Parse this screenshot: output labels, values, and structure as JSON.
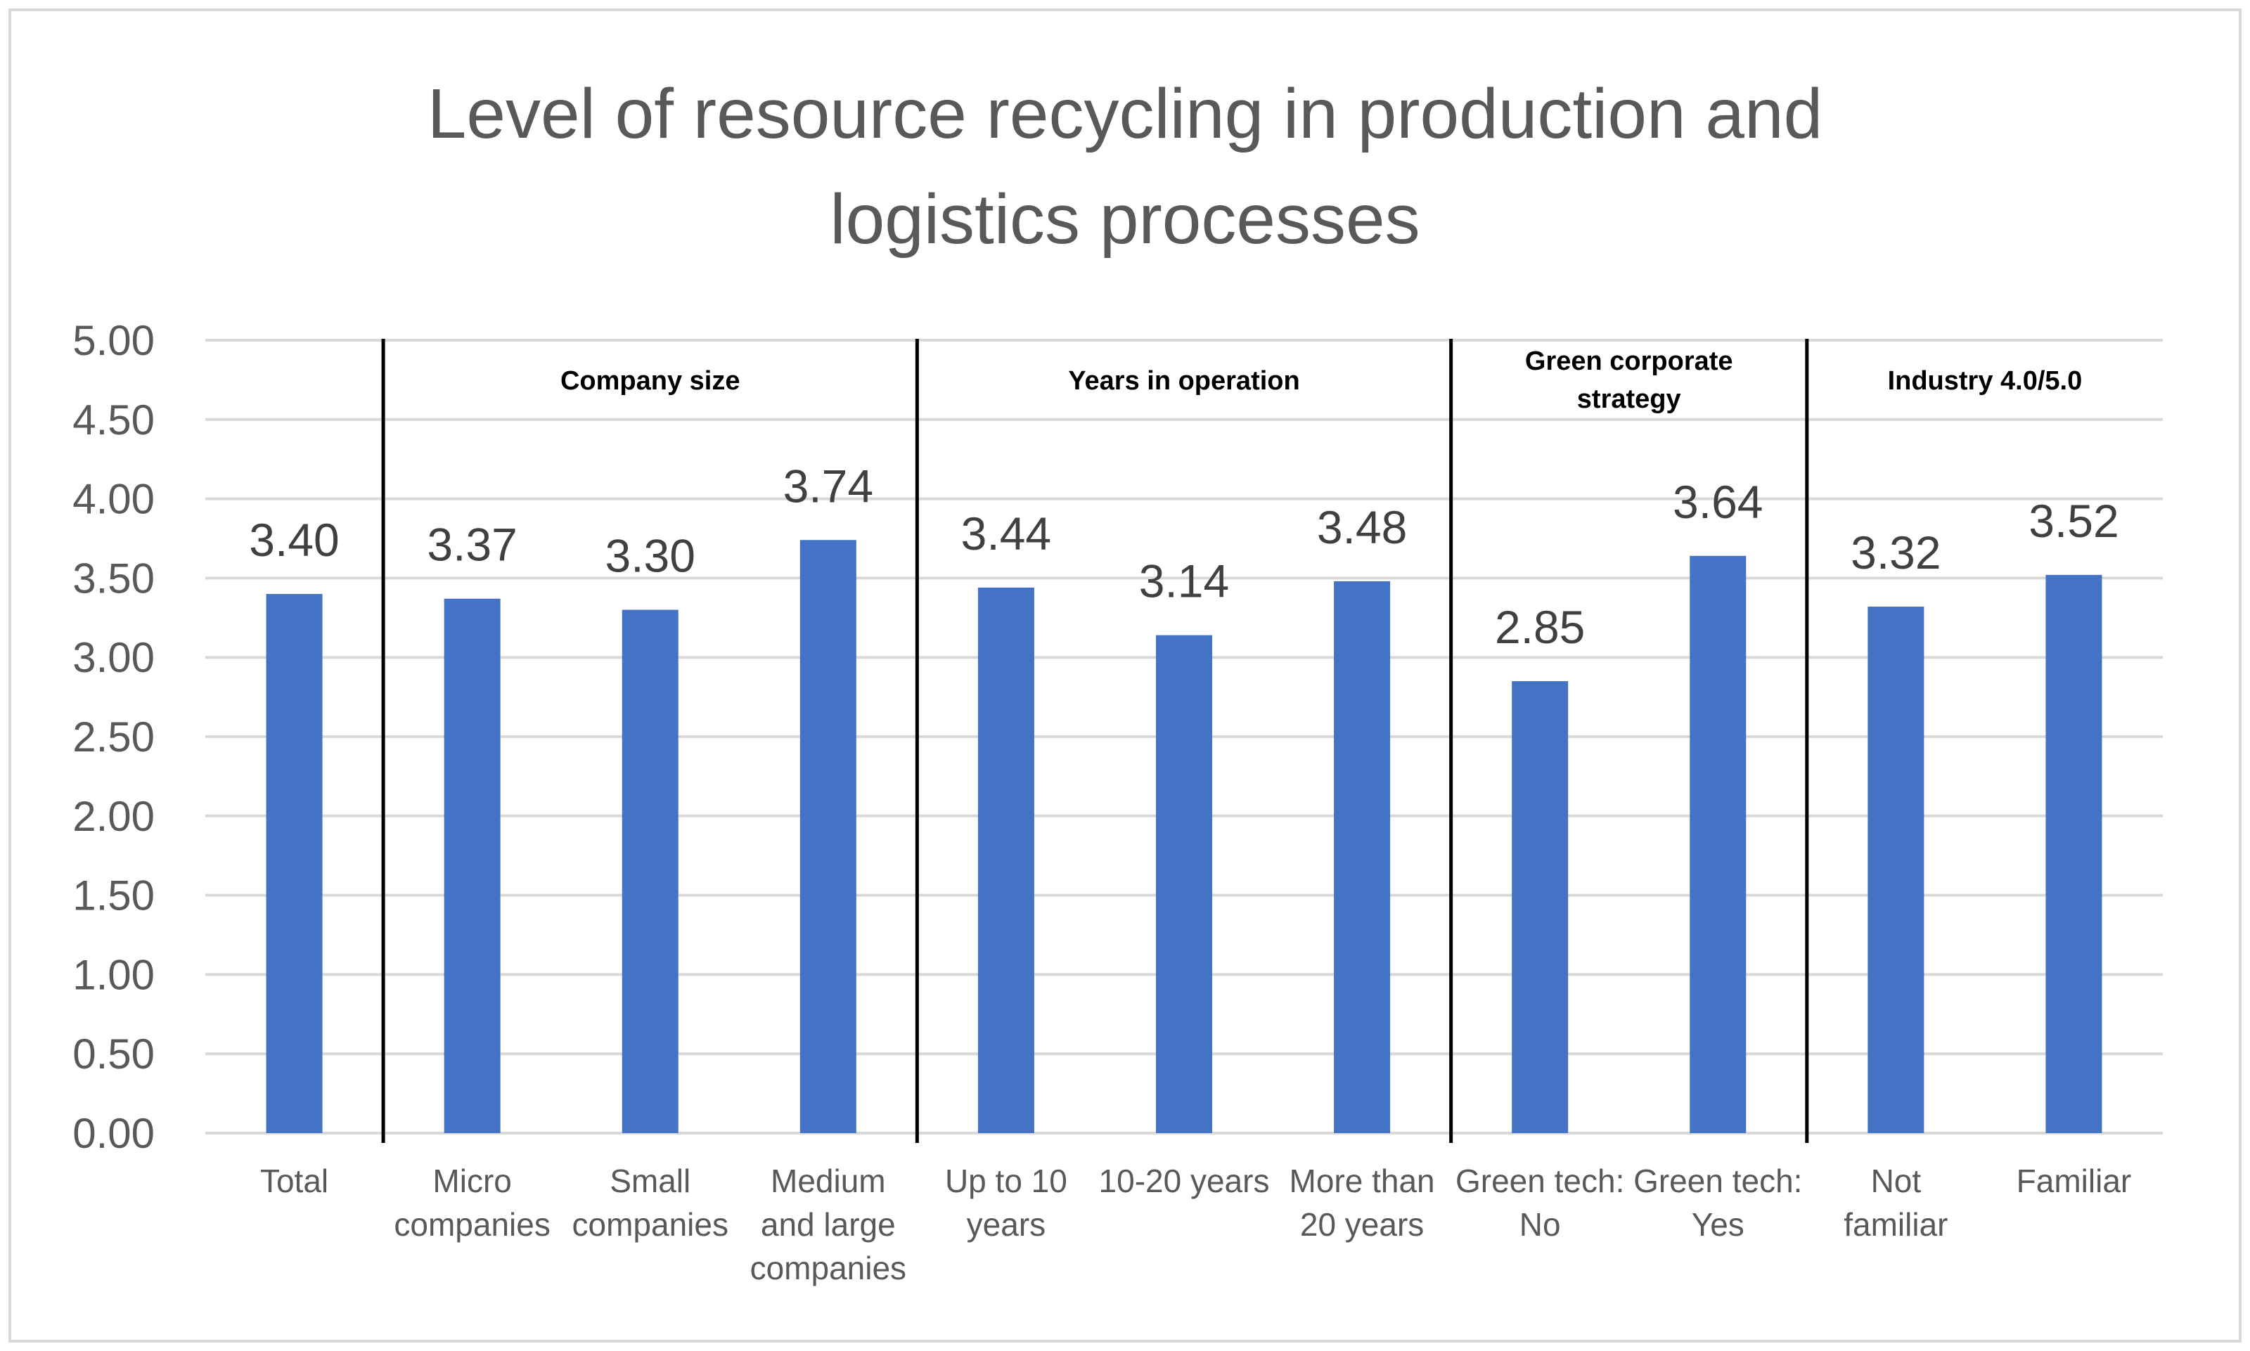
{
  "chart_data": {
    "type": "bar",
    "title": "Level of resource recycling in production and logistics processes",
    "title_lines": [
      "Level of resource recycling in production and",
      "logistics processes"
    ],
    "xlabel": "",
    "ylabel": "",
    "ylim": [
      0,
      5
    ],
    "yticks": [
      "0.00",
      "0.50",
      "1.00",
      "1.50",
      "2.00",
      "2.50",
      "3.00",
      "3.50",
      "4.00",
      "4.50",
      "5.00"
    ],
    "grid": true,
    "categories": [
      "Total",
      "Micro companies",
      "Small companies",
      "Medium and large companies",
      "Up to 10 years",
      "10-20 years",
      "More than 20 years",
      "Green tech: No",
      "Green tech: Yes",
      "Not familiar",
      "Familiar"
    ],
    "category_lines": [
      [
        "Total"
      ],
      [
        "Micro",
        "companies"
      ],
      [
        "Small",
        "companies"
      ],
      [
        "Medium",
        "and large",
        "companies"
      ],
      [
        "Up to 10",
        "years"
      ],
      [
        "10-20 years"
      ],
      [
        "More than",
        "20 years"
      ],
      [
        "Green tech:",
        "No"
      ],
      [
        "Green tech:",
        "Yes"
      ],
      [
        "Not",
        "familiar"
      ],
      [
        "Familiar"
      ]
    ],
    "values": [
      3.4,
      3.37,
      3.3,
      3.74,
      3.44,
      3.14,
      3.48,
      2.85,
      3.64,
      3.32,
      3.52
    ],
    "value_labels": [
      "3.40",
      "3.37",
      "3.30",
      "3.74",
      "3.44",
      "3.14",
      "3.48",
      "2.85",
      "3.64",
      "3.32",
      "3.52"
    ],
    "groups": [
      {
        "label_lines": [
          "Company size"
        ],
        "start": 1,
        "end": 3
      },
      {
        "label_lines": [
          "Years in operation"
        ],
        "start": 4,
        "end": 6
      },
      {
        "label_lines": [
          "Green corporate",
          "strategy"
        ],
        "start": 7,
        "end": 8
      },
      {
        "label_lines": [
          "Industry 4.0/5.0"
        ],
        "start": 9,
        "end": 10
      }
    ],
    "colors": {
      "bar": "#4472C4",
      "grid": "#D9D9D9",
      "separator": "#000000",
      "text": "#595959"
    }
  }
}
